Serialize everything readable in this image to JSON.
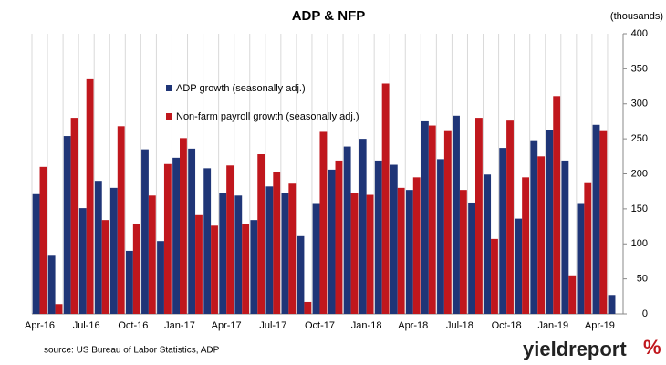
{
  "chart_data": {
    "type": "bar",
    "title": "ADP & NFP",
    "y_axis_label": "(thousands)",
    "categories": [
      "Apr-16",
      null,
      null,
      "Jul-16",
      null,
      null,
      "Oct-16",
      null,
      null,
      "Jan-17",
      null,
      null,
      "Apr-17",
      null,
      null,
      "Jul-17",
      null,
      null,
      "Oct-17",
      null,
      null,
      "Jan-18",
      null,
      null,
      "Apr-18",
      null,
      null,
      "Jul-18",
      null,
      null,
      "Oct-18",
      null,
      null,
      "Jan-19",
      null,
      null,
      "Apr-19",
      null
    ],
    "series": [
      {
        "name": "ADP growth (seasonally adj.)",
        "color": "#1f3577",
        "values": [
          171,
          83,
          254,
          151,
          190,
          180,
          90,
          235,
          104,
          223,
          236,
          208,
          172,
          169,
          134,
          182,
          173,
          111,
          157,
          206,
          239,
          250,
          219,
          213,
          177,
          275,
          221,
          283,
          159,
          199,
          237,
          136,
          248,
          262,
          219,
          157,
          270,
          27
        ]
      },
      {
        "name": "Non-farm payroll growth (seasonally adj.)",
        "color": "#c0171d",
        "values": [
          210,
          14,
          280,
          335,
          134,
          268,
          129,
          169,
          214,
          251,
          141,
          126,
          212,
          128,
          228,
          203,
          186,
          17,
          260,
          219,
          173,
          170,
          329,
          180,
          195,
          269,
          261,
          177,
          280,
          107,
          276,
          195,
          225,
          311,
          55,
          188,
          261,
          null
        ]
      }
    ],
    "ylim": [
      0,
      400
    ],
    "yticks": [
      0,
      50,
      100,
      150,
      200,
      250,
      300,
      350,
      400
    ],
    "y_axis_side": "right",
    "legend": "upper left",
    "source": "source: US Bureau of Labor Statistics, ADP",
    "logo": {
      "text": "yieldreport",
      "symbol": "%"
    }
  }
}
